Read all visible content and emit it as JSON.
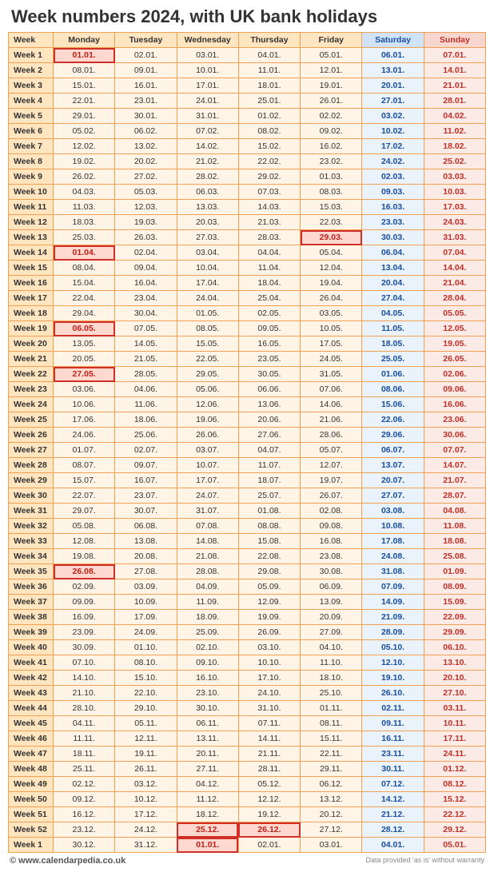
{
  "title": "Week numbers 2024, with UK bank holidays",
  "colors": {
    "header_bg": "#ffe6c0",
    "weekday_bg": "#fff4e6",
    "sat_header_bg": "#cfe2f7",
    "sat_bg": "#eaf2fc",
    "sat_text": "#1a4fa0",
    "sun_header_bg": "#f7d6d0",
    "sun_bg": "#fbeae6",
    "sun_text": "#c03028",
    "hol_bg": "#ffd8d0",
    "hol_border": "#d03028",
    "grid_border": "#f0a050"
  },
  "columns": [
    "Week",
    "Monday",
    "Tuesday",
    "Wednesday",
    "Thursday",
    "Friday",
    "Saturday",
    "Sunday"
  ],
  "holidays": [
    "01.01.",
    "29.03.",
    "01.04.",
    "06.05.",
    "27.05.",
    "26.08.",
    "25.12.",
    "26.12.",
    "01.01.next"
  ],
  "rows": [
    {
      "week": "Week 1",
      "days": [
        "01.01.",
        "02.01.",
        "03.01.",
        "04.01.",
        "05.01.",
        "06.01.",
        "07.01."
      ],
      "hol": [
        0
      ]
    },
    {
      "week": "Week 2",
      "days": [
        "08.01.",
        "09.01.",
        "10.01.",
        "11.01.",
        "12.01.",
        "13.01.",
        "14.01."
      ],
      "hol": []
    },
    {
      "week": "Week 3",
      "days": [
        "15.01.",
        "16.01.",
        "17.01.",
        "18.01.",
        "19.01.",
        "20.01.",
        "21.01."
      ],
      "hol": []
    },
    {
      "week": "Week 4",
      "days": [
        "22.01.",
        "23.01.",
        "24.01.",
        "25.01.",
        "26.01.",
        "27.01.",
        "28.01."
      ],
      "hol": []
    },
    {
      "week": "Week 5",
      "days": [
        "29.01.",
        "30.01.",
        "31.01.",
        "01.02.",
        "02.02.",
        "03.02.",
        "04.02."
      ],
      "hol": []
    },
    {
      "week": "Week 6",
      "days": [
        "05.02.",
        "06.02.",
        "07.02.",
        "08.02.",
        "09.02.",
        "10.02.",
        "11.02."
      ],
      "hol": []
    },
    {
      "week": "Week 7",
      "days": [
        "12.02.",
        "13.02.",
        "14.02.",
        "15.02.",
        "16.02.",
        "17.02.",
        "18.02."
      ],
      "hol": []
    },
    {
      "week": "Week 8",
      "days": [
        "19.02.",
        "20.02.",
        "21.02.",
        "22.02.",
        "23.02.",
        "24.02.",
        "25.02."
      ],
      "hol": []
    },
    {
      "week": "Week 9",
      "days": [
        "26.02.",
        "27.02.",
        "28.02.",
        "29.02.",
        "01.03.",
        "02.03.",
        "03.03."
      ],
      "hol": []
    },
    {
      "week": "Week 10",
      "days": [
        "04.03.",
        "05.03.",
        "06.03.",
        "07.03.",
        "08.03.",
        "09.03.",
        "10.03."
      ],
      "hol": []
    },
    {
      "week": "Week 11",
      "days": [
        "11.03.",
        "12.03.",
        "13.03.",
        "14.03.",
        "15.03.",
        "16.03.",
        "17.03."
      ],
      "hol": []
    },
    {
      "week": "Week 12",
      "days": [
        "18.03.",
        "19.03.",
        "20.03.",
        "21.03.",
        "22.03.",
        "23.03.",
        "24.03."
      ],
      "hol": []
    },
    {
      "week": "Week 13",
      "days": [
        "25.03.",
        "26.03.",
        "27.03.",
        "28.03.",
        "29.03.",
        "30.03.",
        "31.03."
      ],
      "hol": [
        4
      ]
    },
    {
      "week": "Week 14",
      "days": [
        "01.04.",
        "02.04.",
        "03.04.",
        "04.04.",
        "05.04.",
        "06.04.",
        "07.04."
      ],
      "hol": [
        0
      ]
    },
    {
      "week": "Week 15",
      "days": [
        "08.04.",
        "09.04.",
        "10.04.",
        "11.04.",
        "12.04.",
        "13.04.",
        "14.04."
      ],
      "hol": []
    },
    {
      "week": "Week 16",
      "days": [
        "15.04.",
        "16.04.",
        "17.04.",
        "18.04.",
        "19.04.",
        "20.04.",
        "21.04."
      ],
      "hol": []
    },
    {
      "week": "Week 17",
      "days": [
        "22.04.",
        "23.04.",
        "24.04.",
        "25.04.",
        "26.04.",
        "27.04.",
        "28.04."
      ],
      "hol": []
    },
    {
      "week": "Week 18",
      "days": [
        "29.04.",
        "30.04.",
        "01.05.",
        "02.05.",
        "03.05.",
        "04.05.",
        "05.05."
      ],
      "hol": []
    },
    {
      "week": "Week 19",
      "days": [
        "06.05.",
        "07.05.",
        "08.05.",
        "09.05.",
        "10.05.",
        "11.05.",
        "12.05."
      ],
      "hol": [
        0
      ]
    },
    {
      "week": "Week 20",
      "days": [
        "13.05.",
        "14.05.",
        "15.05.",
        "16.05.",
        "17.05.",
        "18.05.",
        "19.05."
      ],
      "hol": []
    },
    {
      "week": "Week 21",
      "days": [
        "20.05.",
        "21.05.",
        "22.05.",
        "23.05.",
        "24.05.",
        "25.05.",
        "26.05."
      ],
      "hol": []
    },
    {
      "week": "Week 22",
      "days": [
        "27.05.",
        "28.05.",
        "29.05.",
        "30.05.",
        "31.05.",
        "01.06.",
        "02.06."
      ],
      "hol": [
        0
      ]
    },
    {
      "week": "Week 23",
      "days": [
        "03.06.",
        "04.06.",
        "05.06.",
        "06.06.",
        "07.06.",
        "08.06.",
        "09.06."
      ],
      "hol": []
    },
    {
      "week": "Week 24",
      "days": [
        "10.06.",
        "11.06.",
        "12.06.",
        "13.06.",
        "14.06.",
        "15.06.",
        "16.06."
      ],
      "hol": []
    },
    {
      "week": "Week 25",
      "days": [
        "17.06.",
        "18.06.",
        "19.06.",
        "20.06.",
        "21.06.",
        "22.06.",
        "23.06."
      ],
      "hol": []
    },
    {
      "week": "Week 26",
      "days": [
        "24.06.",
        "25.06.",
        "26.06.",
        "27.06.",
        "28.06.",
        "29.06.",
        "30.06."
      ],
      "hol": []
    },
    {
      "week": "Week 27",
      "days": [
        "01.07.",
        "02.07.",
        "03.07.",
        "04.07.",
        "05.07.",
        "06.07.",
        "07.07."
      ],
      "hol": []
    },
    {
      "week": "Week 28",
      "days": [
        "08.07.",
        "09.07.",
        "10.07.",
        "11.07.",
        "12.07.",
        "13.07.",
        "14.07."
      ],
      "hol": []
    },
    {
      "week": "Week 29",
      "days": [
        "15.07.",
        "16.07.",
        "17.07.",
        "18.07.",
        "19.07.",
        "20.07.",
        "21.07."
      ],
      "hol": []
    },
    {
      "week": "Week 30",
      "days": [
        "22.07.",
        "23.07.",
        "24.07.",
        "25.07.",
        "26.07.",
        "27.07.",
        "28.07."
      ],
      "hol": []
    },
    {
      "week": "Week 31",
      "days": [
        "29.07.",
        "30.07.",
        "31.07.",
        "01.08.",
        "02.08.",
        "03.08.",
        "04.08."
      ],
      "hol": []
    },
    {
      "week": "Week 32",
      "days": [
        "05.08.",
        "06.08.",
        "07.08.",
        "08.08.",
        "09.08.",
        "10.08.",
        "11.08."
      ],
      "hol": []
    },
    {
      "week": "Week 33",
      "days": [
        "12.08.",
        "13.08.",
        "14.08.",
        "15.08.",
        "16.08.",
        "17.08.",
        "18.08."
      ],
      "hol": []
    },
    {
      "week": "Week 34",
      "days": [
        "19.08.",
        "20.08.",
        "21.08.",
        "22.08.",
        "23.08.",
        "24.08.",
        "25.08."
      ],
      "hol": []
    },
    {
      "week": "Week 35",
      "days": [
        "26.08.",
        "27.08.",
        "28.08.",
        "29.08.",
        "30.08.",
        "31.08.",
        "01.09."
      ],
      "hol": [
        0
      ]
    },
    {
      "week": "Week 36",
      "days": [
        "02.09.",
        "03.09.",
        "04.09.",
        "05.09.",
        "06.09.",
        "07.09.",
        "08.09."
      ],
      "hol": []
    },
    {
      "week": "Week 37",
      "days": [
        "09.09.",
        "10.09.",
        "11.09.",
        "12.09.",
        "13.09.",
        "14.09.",
        "15.09."
      ],
      "hol": []
    },
    {
      "week": "Week 38",
      "days": [
        "16.09.",
        "17.09.",
        "18.09.",
        "19.09.",
        "20.09.",
        "21.09.",
        "22.09."
      ],
      "hol": []
    },
    {
      "week": "Week 39",
      "days": [
        "23.09.",
        "24.09.",
        "25.09.",
        "26.09.",
        "27.09.",
        "28.09.",
        "29.09."
      ],
      "hol": []
    },
    {
      "week": "Week 40",
      "days": [
        "30.09.",
        "01.10.",
        "02.10.",
        "03.10.",
        "04.10.",
        "05.10.",
        "06.10."
      ],
      "hol": []
    },
    {
      "week": "Week 41",
      "days": [
        "07.10.",
        "08.10.",
        "09.10.",
        "10.10.",
        "11.10.",
        "12.10.",
        "13.10."
      ],
      "hol": []
    },
    {
      "week": "Week 42",
      "days": [
        "14.10.",
        "15.10.",
        "16.10.",
        "17.10.",
        "18.10.",
        "19.10.",
        "20.10."
      ],
      "hol": []
    },
    {
      "week": "Week 43",
      "days": [
        "21.10.",
        "22.10.",
        "23.10.",
        "24.10.",
        "25.10.",
        "26.10.",
        "27.10."
      ],
      "hol": []
    },
    {
      "week": "Week 44",
      "days": [
        "28.10.",
        "29.10.",
        "30.10.",
        "31.10.",
        "01.11.",
        "02.11.",
        "03.11."
      ],
      "hol": []
    },
    {
      "week": "Week 45",
      "days": [
        "04.11.",
        "05.11.",
        "06.11.",
        "07.11.",
        "08.11.",
        "09.11.",
        "10.11."
      ],
      "hol": []
    },
    {
      "week": "Week 46",
      "days": [
        "11.11.",
        "12.11.",
        "13.11.",
        "14.11.",
        "15.11.",
        "16.11.",
        "17.11."
      ],
      "hol": []
    },
    {
      "week": "Week 47",
      "days": [
        "18.11.",
        "19.11.",
        "20.11.",
        "21.11.",
        "22.11.",
        "23.11.",
        "24.11."
      ],
      "hol": []
    },
    {
      "week": "Week 48",
      "days": [
        "25.11.",
        "26.11.",
        "27.11.",
        "28.11.",
        "29.11.",
        "30.11.",
        "01.12."
      ],
      "hol": []
    },
    {
      "week": "Week 49",
      "days": [
        "02.12.",
        "03.12.",
        "04.12.",
        "05.12.",
        "06.12.",
        "07.12.",
        "08.12."
      ],
      "hol": []
    },
    {
      "week": "Week 50",
      "days": [
        "09.12.",
        "10.12.",
        "11.12.",
        "12.12.",
        "13.12.",
        "14.12.",
        "15.12."
      ],
      "hol": []
    },
    {
      "week": "Week 51",
      "days": [
        "16.12.",
        "17.12.",
        "18.12.",
        "19.12.",
        "20.12.",
        "21.12.",
        "22.12."
      ],
      "hol": []
    },
    {
      "week": "Week 52",
      "days": [
        "23.12.",
        "24.12.",
        "25.12.",
        "26.12.",
        "27.12.",
        "28.12.",
        "29.12."
      ],
      "hol": [
        2,
        3
      ]
    },
    {
      "week": "Week 1",
      "days": [
        "30.12.",
        "31.12.",
        "01.01.",
        "02.01.",
        "03.01.",
        "04.01.",
        "05.01."
      ],
      "hol": [
        2
      ]
    }
  ],
  "footer": {
    "left": "© www.calendarpedia.co.uk",
    "right": "Data provided 'as is' without warranty"
  }
}
